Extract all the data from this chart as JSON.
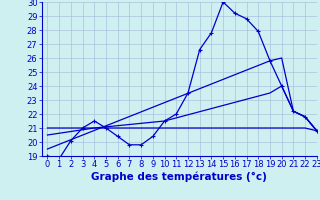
{
  "xlabel": "Graphe des températures (°c)",
  "bg_color": "#cff0f0",
  "line_color": "#0000cc",
  "ylim": [
    19,
    30
  ],
  "xlim": [
    -0.5,
    23
  ],
  "yticks": [
    19,
    20,
    21,
    22,
    23,
    24,
    25,
    26,
    27,
    28,
    29,
    30
  ],
  "xticks": [
    0,
    1,
    2,
    3,
    4,
    5,
    6,
    7,
    8,
    9,
    10,
    11,
    12,
    13,
    14,
    15,
    16,
    17,
    18,
    19,
    20,
    21,
    22,
    23
  ],
  "line1_x": [
    0,
    1,
    2,
    3,
    4,
    5,
    6,
    7,
    8,
    9,
    10,
    11,
    12,
    13,
    14,
    15,
    16,
    17,
    18,
    19,
    20,
    21,
    22,
    23
  ],
  "line1_y": [
    19.0,
    18.8,
    20.1,
    21.0,
    21.5,
    21.0,
    20.4,
    19.8,
    19.8,
    20.4,
    21.5,
    22.0,
    23.5,
    26.6,
    27.8,
    30.0,
    29.2,
    28.8,
    27.9,
    25.8,
    24.0,
    22.2,
    21.8,
    20.8
  ],
  "line2_x": [
    0,
    3,
    4,
    5,
    6,
    7,
    8,
    9,
    10,
    11,
    12,
    13,
    14,
    15,
    16,
    17,
    18,
    19,
    20,
    21,
    22,
    23
  ],
  "line2_y": [
    21.0,
    21.0,
    21.0,
    21.0,
    21.0,
    21.0,
    21.0,
    21.0,
    21.0,
    21.0,
    21.0,
    21.0,
    21.0,
    21.0,
    21.0,
    21.0,
    21.0,
    21.0,
    21.0,
    21.0,
    21.0,
    20.8
  ],
  "line3_x": [
    0,
    19,
    20,
    21,
    22,
    23
  ],
  "line3_y": [
    19.5,
    25.8,
    26.0,
    22.2,
    21.8,
    20.8
  ],
  "line4_x": [
    0,
    4,
    10,
    19,
    20,
    21,
    22,
    23
  ],
  "line4_y": [
    20.5,
    21.0,
    21.5,
    23.5,
    24.0,
    22.2,
    21.8,
    20.8
  ],
  "grid_color": "#a0b8d8",
  "tick_fontsize": 6,
  "xlabel_fontsize": 7.5,
  "lw": 0.9
}
